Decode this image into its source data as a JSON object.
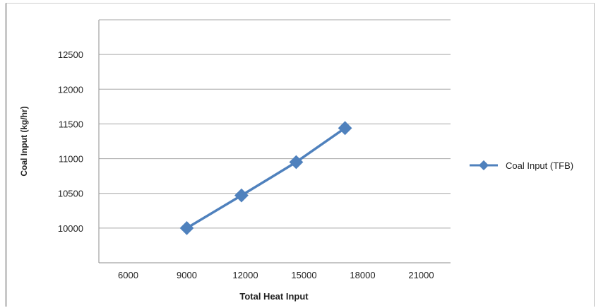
{
  "chart_data": {
    "type": "line",
    "x": [
      9000,
      11800,
      14600,
      17100
    ],
    "series": [
      {
        "name": "Coal Input (TFB)",
        "values": [
          10000,
          10470,
          10950,
          11440
        ],
        "color": "#4f81bd"
      }
    ],
    "xlabel": "Total Heat Input",
    "ylabel": "Coal Input (kg/hr)",
    "xlim": [
      4500,
      22500
    ],
    "ylim": [
      9500,
      13000
    ],
    "xticks": [
      "6000",
      "9000",
      "12000",
      "15000",
      "18000",
      "21000"
    ],
    "yticks": [
      "10000",
      "10500",
      "11000",
      "11500",
      "12000",
      "12500"
    ],
    "grid": true,
    "legend_position": "right",
    "marker": "diamond"
  }
}
